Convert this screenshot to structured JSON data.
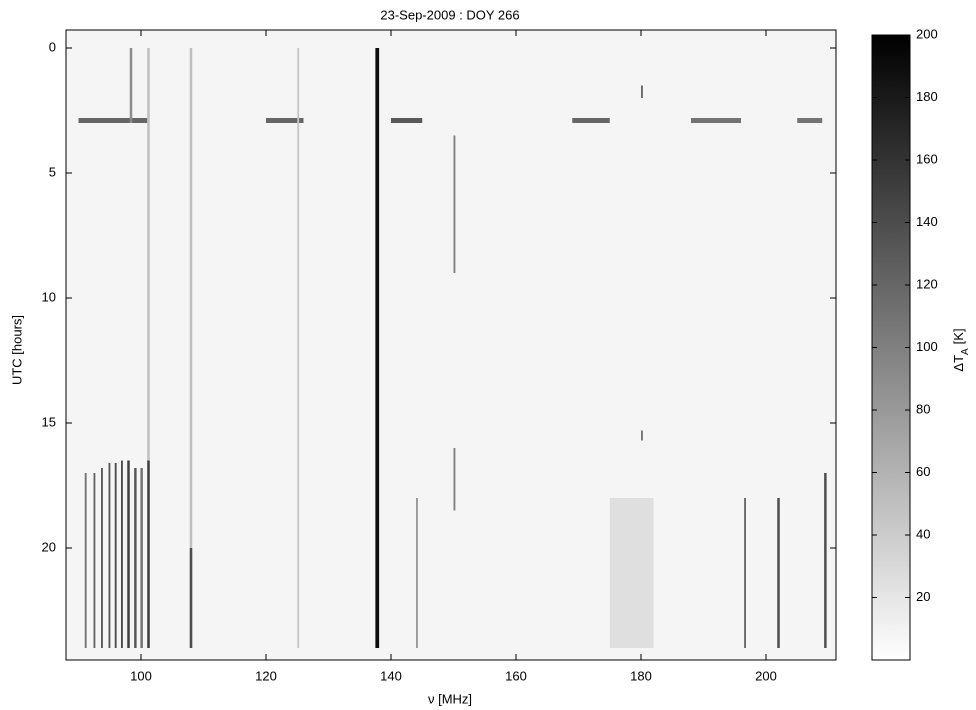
{
  "chart_data": {
    "type": "heatmap",
    "title": "23-Sep-2009 : DOY 266",
    "x_label": "ν [MHz]",
    "y_label": "UTC [hours]",
    "colorbar_label": {
      "main": "ΔT",
      "sub": "A",
      "unit": "[K]"
    },
    "xlim": [
      88,
      211.2
    ],
    "ylim": [
      -0.72,
      24.48
    ],
    "y_reversed": true,
    "xticks": [
      100,
      120,
      140,
      160,
      180,
      200
    ],
    "yticks": [
      0,
      5,
      10,
      15,
      20
    ],
    "clim": [
      0,
      200
    ],
    "cticks": [
      20,
      40,
      60,
      80,
      100,
      120,
      140,
      160,
      180,
      200
    ],
    "background_value": 8,
    "features": [
      {
        "x": [
          137.5,
          138.1
        ],
        "y": [
          0,
          24
        ],
        "value": 190
      },
      {
        "x": [
          90,
          101
        ],
        "y": [
          2.8,
          3
        ],
        "value": 120
      },
      {
        "x": [
          120,
          126
        ],
        "y": [
          2.8,
          3
        ],
        "value": 120
      },
      {
        "x": [
          140,
          145
        ],
        "y": [
          2.8,
          3
        ],
        "value": 130
      },
      {
        "x": [
          169,
          175
        ],
        "y": [
          2.8,
          3
        ],
        "value": 120
      },
      {
        "x": [
          188,
          196
        ],
        "y": [
          2.8,
          3
        ],
        "value": 110
      },
      {
        "x": [
          205,
          209
        ],
        "y": [
          2.8,
          3
        ],
        "value": 110
      },
      {
        "x": [
          98.2,
          98.6
        ],
        "y": [
          0,
          3
        ],
        "value": 90
      },
      {
        "x": [
          101,
          101.4
        ],
        "y": [
          0,
          24
        ],
        "value": 50
      },
      {
        "x": [
          101,
          101.4
        ],
        "y": [
          16.5,
          24
        ],
        "value": 150
      },
      {
        "x": [
          91,
          91.3
        ],
        "y": [
          17,
          24
        ],
        "value": 110
      },
      {
        "x": [
          92.4,
          92.7
        ],
        "y": [
          17,
          24
        ],
        "value": 120
      },
      {
        "x": [
          93.6,
          93.9
        ],
        "y": [
          16.8,
          24
        ],
        "value": 130
      },
      {
        "x": [
          94.8,
          95.1
        ],
        "y": [
          16.6,
          24
        ],
        "value": 130
      },
      {
        "x": [
          95.8,
          96.1
        ],
        "y": [
          16.6,
          24
        ],
        "value": 140
      },
      {
        "x": [
          96.8,
          97.1
        ],
        "y": [
          16.5,
          24
        ],
        "value": 140
      },
      {
        "x": [
          97.8,
          98.2
        ],
        "y": [
          16.5,
          24
        ],
        "value": 150
      },
      {
        "x": [
          98.9,
          99.3
        ],
        "y": [
          16.8,
          24
        ],
        "value": 130
      },
      {
        "x": [
          99.9,
          100.3
        ],
        "y": [
          16.8,
          24
        ],
        "value": 110
      },
      {
        "x": [
          107.8,
          108.2
        ],
        "y": [
          0,
          24
        ],
        "value": 50
      },
      {
        "x": [
          107.8,
          108.2
        ],
        "y": [
          20,
          24
        ],
        "value": 140
      },
      {
        "x": [
          125,
          125.3
        ],
        "y": [
          0,
          24
        ],
        "value": 45
      },
      {
        "x": [
          144,
          144.3
        ],
        "y": [
          18,
          24
        ],
        "value": 80
      },
      {
        "x": [
          150,
          150.3
        ],
        "y": [
          3.5,
          9
        ],
        "value": 100
      },
      {
        "x": [
          150,
          150.3
        ],
        "y": [
          16,
          18.5
        ],
        "value": 100
      },
      {
        "x": [
          180,
          180.3
        ],
        "y": [
          1.5,
          2
        ],
        "value": 120
      },
      {
        "x": [
          180,
          180.3
        ],
        "y": [
          15.3,
          15.7
        ],
        "value": 110
      },
      {
        "x": [
          175,
          182
        ],
        "y": [
          18,
          24
        ],
        "value": 25
      },
      {
        "x": [
          196.5,
          196.8
        ],
        "y": [
          18,
          24
        ],
        "value": 120
      },
      {
        "x": [
          201.8,
          202.2
        ],
        "y": [
          18,
          24
        ],
        "value": 140
      },
      {
        "x": [
          209.3,
          209.7
        ],
        "y": [
          17,
          24
        ],
        "value": 140
      }
    ]
  }
}
